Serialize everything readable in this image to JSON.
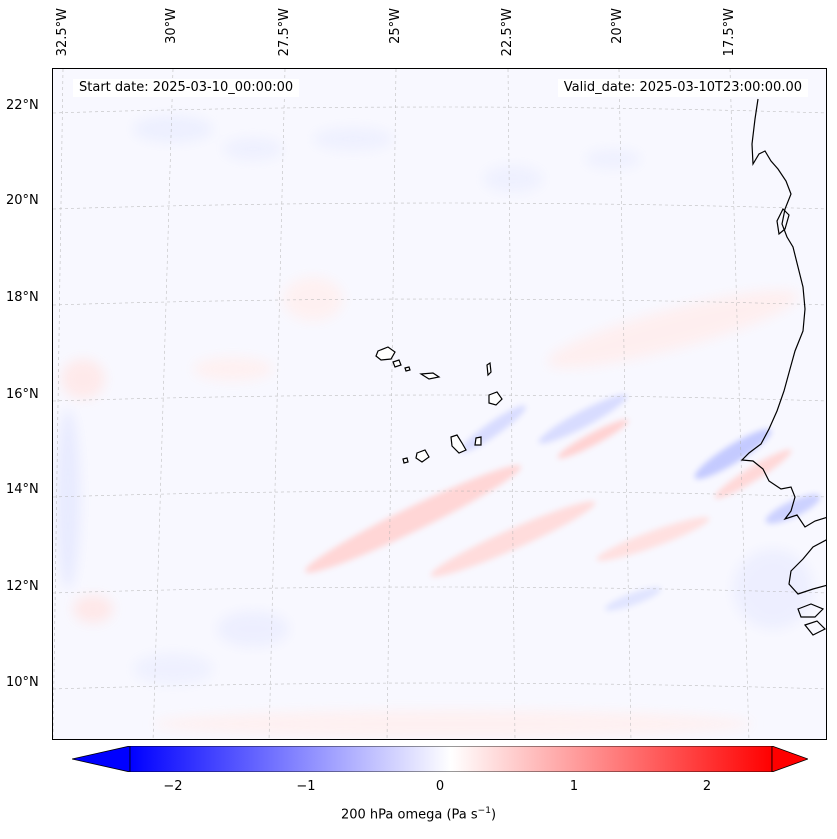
{
  "start_date": "Start date: 2025-03-10_00:00:00",
  "valid_date": "Valid_date: 2025-03-10T23:00:00.00",
  "longitude_labels": [
    "32.5°W",
    "30°W",
    "27.5°W",
    "25°W",
    "22.5°W",
    "20°W",
    "17.5°W"
  ],
  "latitude_labels": [
    "22°N",
    "20°N",
    "18°N",
    "16°N",
    "14°N",
    "12°N",
    "10°N"
  ],
  "colorbar": {
    "label": "200 hPa omega (Pa s",
    "unit_exponent": "−1",
    "label_close": ")",
    "ticks": [
      "−2",
      "−1",
      "0",
      "1",
      "2"
    ],
    "min": -2.5,
    "max": 2.5,
    "colormap": "bwr",
    "low_color": "#0000ff",
    "mid_color": "#ffffff",
    "high_color": "#ff0000"
  },
  "colors": {
    "coastline": "#000000",
    "gridline": "#b0b0b0",
    "ocean_background": "#f8f8ff"
  }
}
